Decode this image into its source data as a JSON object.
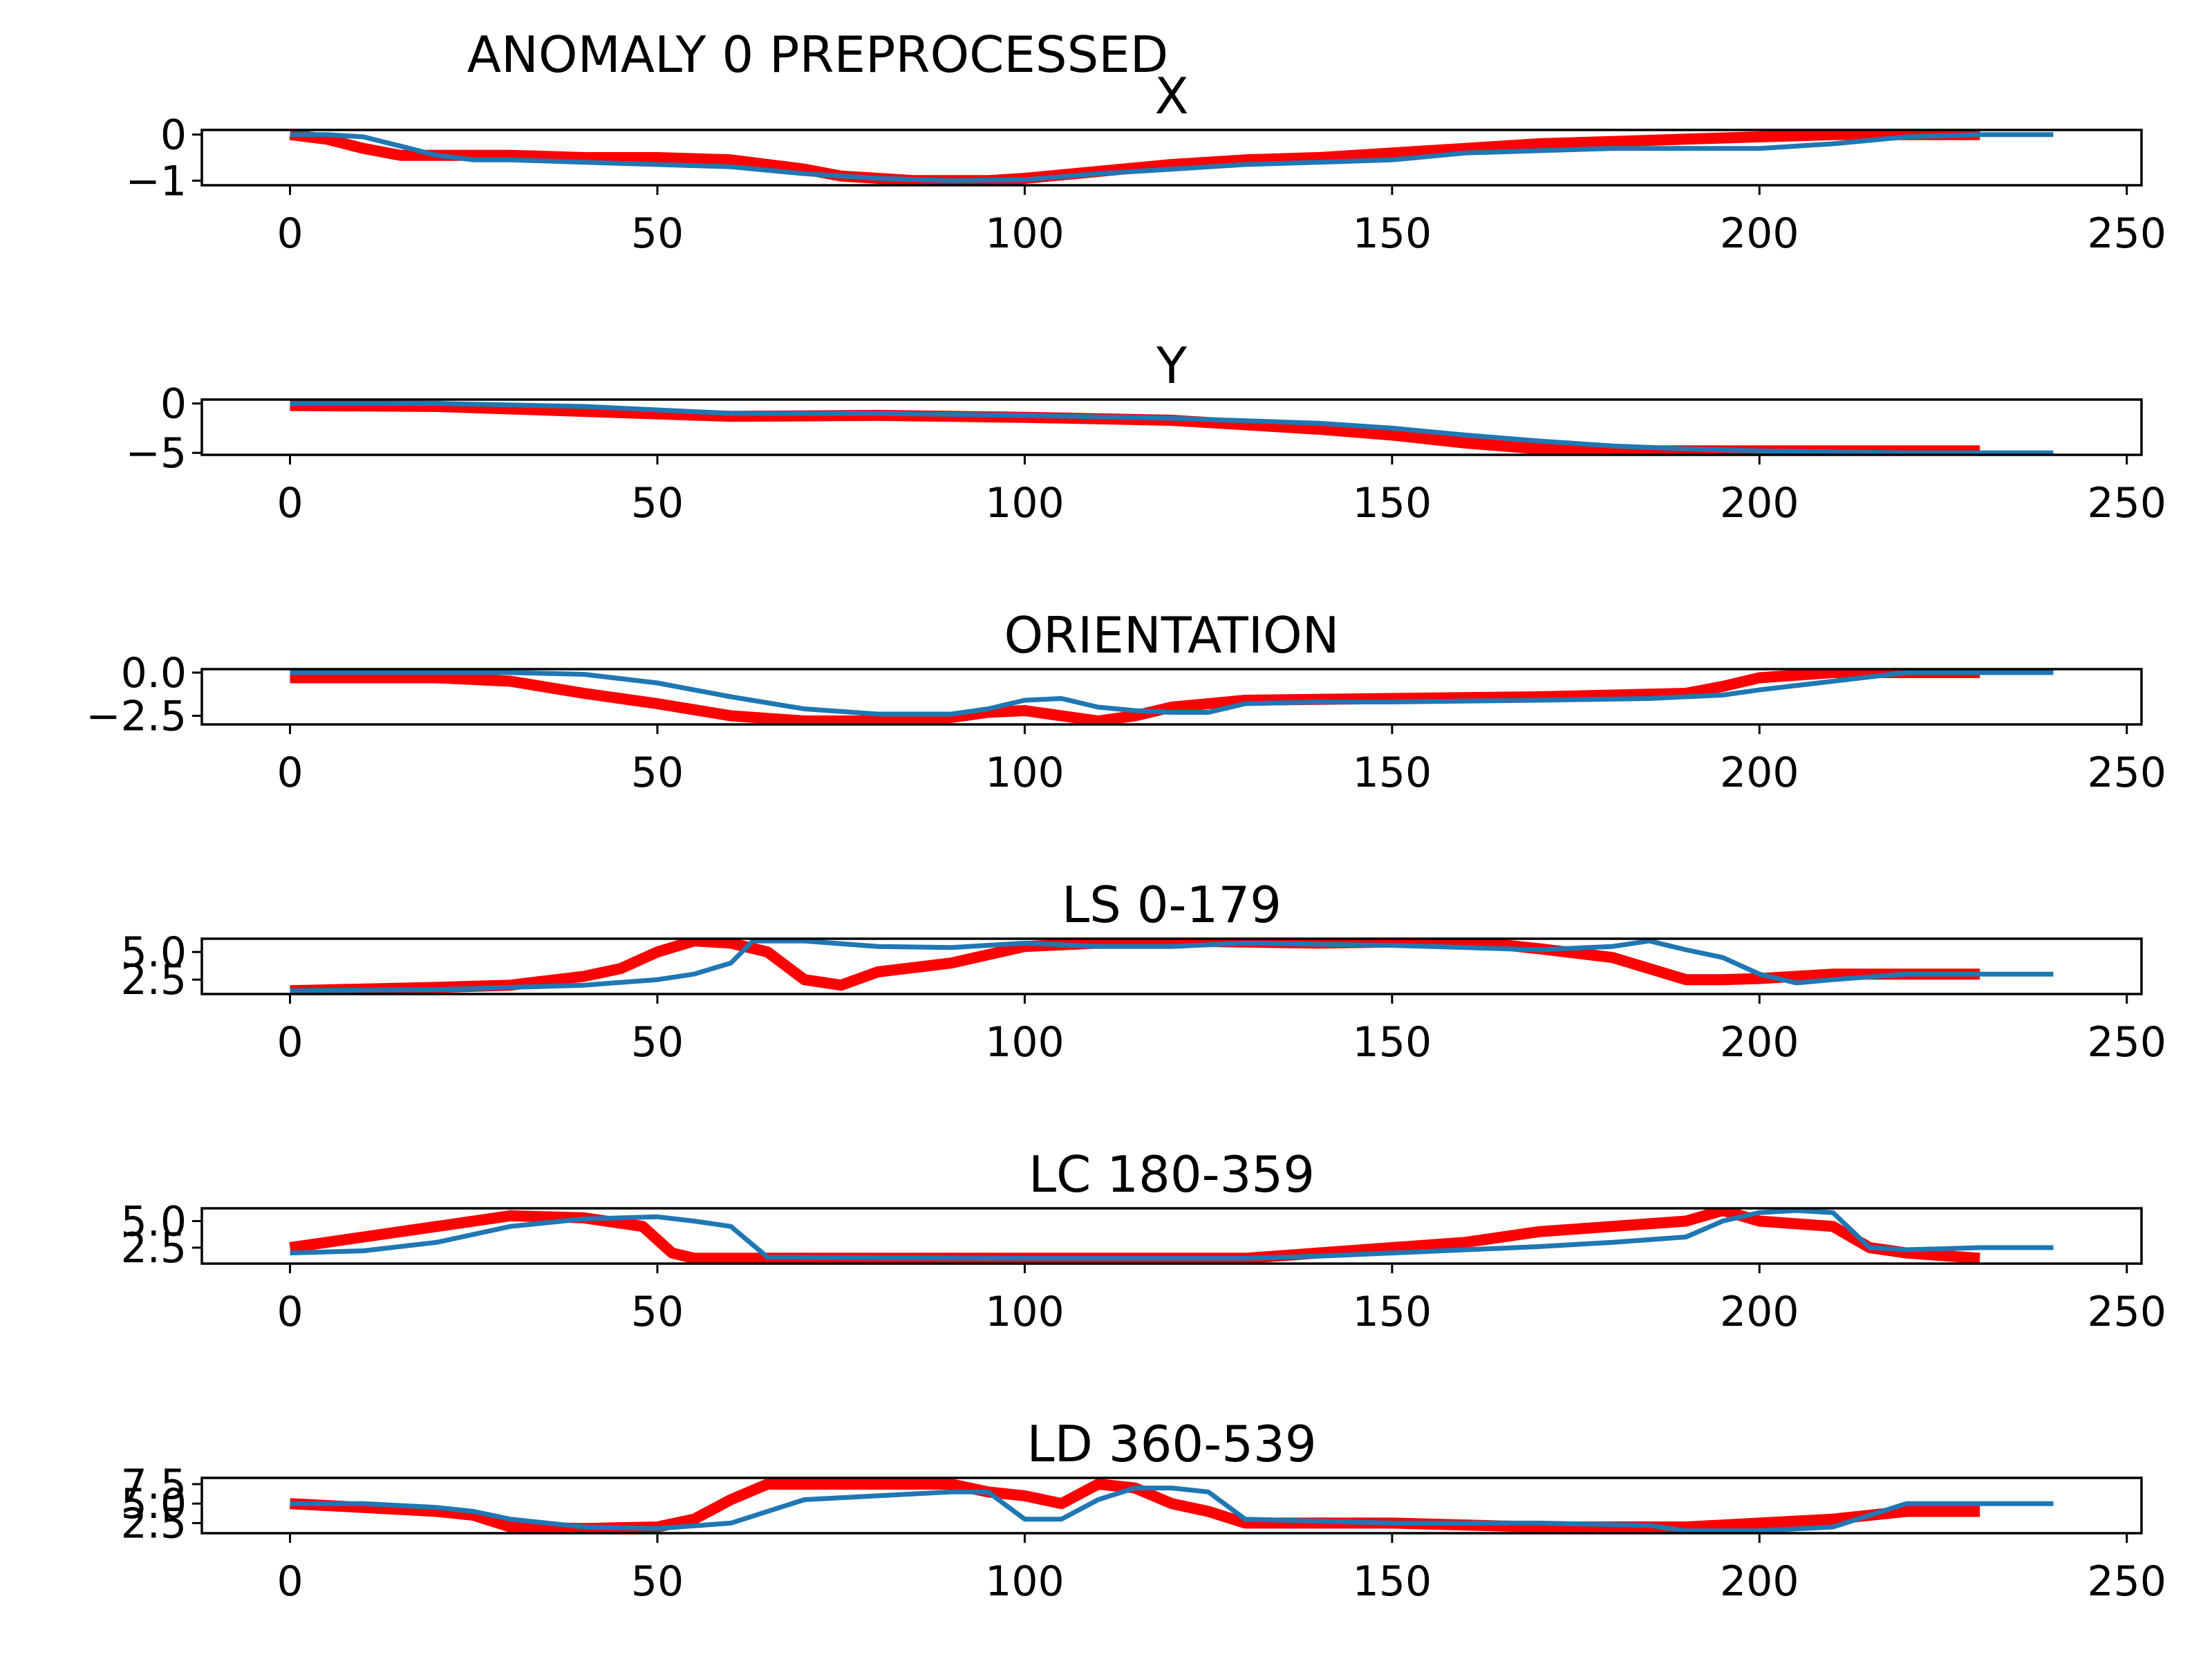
{
  "suptitle": "ANOMALY 0 PREPROCESSED",
  "colors": {
    "reference": "#ff0000",
    "observed": "#1f77b4",
    "axes": "#000000"
  },
  "chart_data": [
    {
      "type": "line",
      "title": "X",
      "xlim": [
        -12,
        252
      ],
      "ylim": [
        -1.1,
        0.1
      ],
      "xticks": [
        0,
        50,
        100,
        150,
        200,
        250
      ],
      "xtick_labels": [
        "0",
        "50",
        "100",
        "150",
        "200",
        "250"
      ],
      "yticks": [
        0,
        -1
      ],
      "ytick_labels": [
        "0",
        "−1"
      ],
      "series": [
        {
          "style": "thick",
          "color": "#ff0000",
          "x": [
            0,
            5,
            10,
            15,
            20,
            30,
            40,
            50,
            60,
            65,
            70,
            75,
            80,
            85,
            90,
            95,
            100,
            110,
            120,
            130,
            140,
            150,
            160,
            170,
            180,
            190,
            200,
            210,
            220,
            230
          ],
          "y": [
            0,
            -0.1,
            -0.3,
            -0.45,
            -0.45,
            -0.45,
            -0.5,
            -0.5,
            -0.55,
            -0.65,
            -0.75,
            -0.9,
            -0.95,
            -1.0,
            -1.0,
            -1.0,
            -0.95,
            -0.8,
            -0.65,
            -0.55,
            -0.5,
            -0.4,
            -0.3,
            -0.2,
            -0.15,
            -0.1,
            -0.05,
            0,
            0,
            0
          ]
        },
        {
          "style": "thin",
          "color": "#1f77b4",
          "x": [
            0,
            5,
            10,
            15,
            20,
            25,
            30,
            40,
            50,
            60,
            70,
            80,
            90,
            100,
            110,
            120,
            130,
            140,
            150,
            160,
            170,
            180,
            190,
            200,
            210,
            220,
            230,
            240
          ],
          "y": [
            0,
            0,
            -0.05,
            -0.25,
            -0.45,
            -0.55,
            -0.55,
            -0.6,
            -0.65,
            -0.7,
            -0.85,
            -0.95,
            -1.0,
            -0.98,
            -0.85,
            -0.75,
            -0.65,
            -0.6,
            -0.55,
            -0.4,
            -0.35,
            -0.3,
            -0.3,
            -0.3,
            -0.2,
            -0.05,
            0,
            0
          ]
        }
      ]
    },
    {
      "type": "line",
      "title": "Y",
      "xlim": [
        -12,
        252
      ],
      "ylim": [
        -5.2,
        0.4
      ],
      "xticks": [
        0,
        50,
        100,
        150,
        200,
        250
      ],
      "xtick_labels": [
        "0",
        "50",
        "100",
        "150",
        "200",
        "250"
      ],
      "yticks": [
        0,
        -5
      ],
      "ytick_labels": [
        "0",
        "−5"
      ],
      "series": [
        {
          "style": "thick",
          "color": "#ff0000",
          "x": [
            0,
            20,
            40,
            60,
            80,
            100,
            120,
            140,
            150,
            160,
            170,
            180,
            190,
            200,
            210,
            220,
            230
          ],
          "y": [
            -0.2,
            -0.3,
            -0.8,
            -1.3,
            -1.2,
            -1.4,
            -1.7,
            -2.6,
            -3.2,
            -4.0,
            -4.6,
            -4.8,
            -4.8,
            -4.8,
            -4.8,
            -4.8,
            -4.8
          ]
        },
        {
          "style": "thin",
          "color": "#1f77b4",
          "x": [
            0,
            20,
            40,
            60,
            80,
            100,
            120,
            140,
            150,
            160,
            170,
            180,
            190,
            200,
            210,
            220,
            230,
            240
          ],
          "y": [
            0,
            0,
            -0.3,
            -1.0,
            -1.0,
            -1.2,
            -1.5,
            -2.0,
            -2.5,
            -3.2,
            -3.8,
            -4.3,
            -4.6,
            -4.8,
            -4.9,
            -5.0,
            -5.0,
            -5.0
          ]
        }
      ]
    },
    {
      "type": "line",
      "title": "ORIENTATION",
      "xlim": [
        -12,
        252
      ],
      "ylim": [
        -3.0,
        0.2
      ],
      "xticks": [
        0,
        50,
        100,
        150,
        200,
        250
      ],
      "xtick_labels": [
        "0",
        "50",
        "100",
        "150",
        "200",
        "250"
      ],
      "yticks": [
        0,
        -2.5
      ],
      "ytick_labels": [
        "0.0",
        "−2.5"
      ],
      "series": [
        {
          "style": "thick",
          "color": "#ff0000",
          "x": [
            0,
            20,
            30,
            40,
            50,
            60,
            70,
            80,
            90,
            95,
            100,
            105,
            110,
            115,
            120,
            130,
            150,
            170,
            180,
            190,
            195,
            200,
            210,
            220,
            230
          ],
          "y": [
            -0.3,
            -0.3,
            -0.5,
            -1.2,
            -1.8,
            -2.5,
            -2.8,
            -2.8,
            -2.6,
            -2.3,
            -2.2,
            -2.5,
            -2.8,
            -2.5,
            -2.0,
            -1.6,
            -1.5,
            -1.4,
            -1.3,
            -1.2,
            -0.8,
            -0.3,
            0,
            0,
            0
          ]
        },
        {
          "style": "thin",
          "color": "#1f77b4",
          "x": [
            0,
            20,
            30,
            40,
            50,
            60,
            70,
            80,
            90,
            95,
            100,
            105,
            110,
            115,
            120,
            125,
            130,
            140,
            150,
            170,
            185,
            195,
            200,
            210,
            220,
            230,
            240
          ],
          "y": [
            0,
            0,
            0,
            -0.1,
            -0.6,
            -1.4,
            -2.1,
            -2.4,
            -2.4,
            -2.1,
            -1.6,
            -1.5,
            -2.0,
            -2.2,
            -2.3,
            -2.3,
            -1.8,
            -1.7,
            -1.7,
            -1.6,
            -1.5,
            -1.3,
            -1.0,
            -0.5,
            0,
            0,
            0
          ]
        }
      ]
    },
    {
      "type": "line",
      "title": "LS 0-179",
      "xlim": [
        -12,
        252
      ],
      "ylim": [
        1.2,
        6.2
      ],
      "xticks": [
        0,
        50,
        100,
        150,
        200,
        250
      ],
      "xtick_labels": [
        "0",
        "50",
        "100",
        "150",
        "200",
        "250"
      ],
      "yticks": [
        2.5,
        5.0
      ],
      "ytick_labels": [
        "2.5",
        "5.0"
      ],
      "series": [
        {
          "style": "thick",
          "color": "#ff0000",
          "x": [
            0,
            20,
            30,
            40,
            45,
            50,
            55,
            60,
            65,
            70,
            75,
            80,
            90,
            100,
            110,
            120,
            140,
            160,
            170,
            180,
            190,
            195,
            200,
            210,
            220,
            230
          ],
          "y": [
            1.5,
            1.8,
            2.0,
            2.8,
            3.5,
            5.0,
            6.0,
            5.8,
            5.0,
            2.5,
            2.0,
            3.2,
            4.0,
            5.5,
            5.8,
            6.0,
            5.8,
            6.0,
            5.3,
            4.5,
            2.5,
            2.5,
            2.6,
            3.0,
            3.0,
            3.0
          ]
        },
        {
          "style": "thin",
          "color": "#1f77b4",
          "x": [
            0,
            20,
            30,
            40,
            50,
            55,
            60,
            63,
            70,
            80,
            90,
            100,
            110,
            120,
            130,
            140,
            150,
            160,
            170,
            180,
            185,
            190,
            195,
            200,
            205,
            210,
            220,
            230,
            240
          ],
          "y": [
            1.5,
            1.6,
            1.8,
            2.0,
            2.5,
            3.0,
            4.0,
            6.0,
            6.0,
            5.5,
            5.4,
            5.8,
            5.5,
            5.5,
            5.8,
            5.7,
            5.6,
            5.4,
            5.2,
            5.5,
            6.0,
            5.2,
            4.5,
            3.0,
            2.2,
            2.5,
            3.0,
            3.0,
            3.0
          ]
        }
      ]
    },
    {
      "type": "line",
      "title": "LC 180-359",
      "xlim": [
        -12,
        252
      ],
      "ylim": [
        1.0,
        6.2
      ],
      "xticks": [
        0,
        50,
        100,
        150,
        200,
        250
      ],
      "xtick_labels": [
        "0",
        "50",
        "100",
        "150",
        "200",
        "250"
      ],
      "yticks": [
        2.5,
        5.0
      ],
      "ytick_labels": [
        "2.5",
        "5.0"
      ],
      "series": [
        {
          "style": "thick",
          "color": "#ff0000",
          "x": [
            0,
            10,
            20,
            30,
            40,
            48,
            52,
            55,
            60,
            100,
            130,
            140,
            150,
            160,
            170,
            180,
            190,
            195,
            200,
            210,
            215,
            220,
            230
          ],
          "y": [
            2.5,
            3.5,
            4.5,
            5.5,
            5.3,
            4.5,
            2.0,
            1.5,
            1.5,
            1.5,
            1.5,
            2.0,
            2.5,
            3.0,
            4.0,
            4.5,
            5.0,
            6.0,
            5.0,
            4.5,
            2.5,
            2.0,
            1.5
          ]
        },
        {
          "style": "thin",
          "color": "#1f77b4",
          "x": [
            0,
            10,
            20,
            30,
            40,
            50,
            55,
            60,
            65,
            100,
            130,
            140,
            150,
            160,
            170,
            180,
            190,
            195,
            200,
            205,
            210,
            215,
            220,
            230,
            240
          ],
          "y": [
            2.0,
            2.2,
            3.0,
            4.5,
            5.2,
            5.4,
            5.0,
            4.5,
            1.6,
            1.5,
            1.5,
            1.7,
            2.0,
            2.3,
            2.6,
            3.0,
            3.5,
            5.0,
            5.8,
            6.0,
            5.8,
            2.5,
            2.3,
            2.5,
            2.5
          ]
        }
      ]
    },
    {
      "type": "line",
      "title": "LD 360-539",
      "xlim": [
        -12,
        252
      ],
      "ylim": [
        1.2,
        8.3
      ],
      "xticks": [
        0,
        50,
        100,
        150,
        200,
        250
      ],
      "xtick_labels": [
        "0",
        "50",
        "100",
        "150",
        "200",
        "250"
      ],
      "yticks": [
        2.5,
        5.0,
        7.5
      ],
      "ytick_labels": [
        "2.5",
        "5.0",
        "7.5"
      ],
      "series": [
        {
          "style": "thick",
          "color": "#ff0000",
          "x": [
            0,
            10,
            20,
            25,
            30,
            40,
            50,
            55,
            60,
            65,
            70,
            80,
            90,
            95,
            100,
            105,
            110,
            115,
            120,
            125,
            130,
            150,
            170,
            190,
            200,
            210,
            220,
            230
          ],
          "y": [
            5.0,
            4.5,
            4.0,
            3.5,
            2.0,
            1.8,
            2.0,
            3.0,
            5.5,
            7.5,
            7.5,
            7.5,
            7.5,
            6.5,
            6.0,
            5.0,
            7.5,
            7.0,
            5.0,
            4.0,
            2.5,
            2.5,
            2.0,
            2.0,
            2.5,
            3.0,
            4.0,
            4.0
          ]
        },
        {
          "style": "thin",
          "color": "#1f77b4",
          "x": [
            0,
            10,
            20,
            25,
            30,
            40,
            50,
            60,
            70,
            80,
            90,
            95,
            100,
            105,
            110,
            115,
            120,
            125,
            130,
            150,
            170,
            185,
            190,
            200,
            210,
            220,
            230,
            240
          ],
          "y": [
            5.0,
            5.0,
            4.5,
            4.0,
            3.0,
            2.0,
            1.8,
            2.5,
            5.5,
            6.0,
            6.5,
            6.5,
            3.0,
            3.0,
            5.5,
            7.0,
            7.0,
            6.5,
            3.0,
            2.5,
            2.5,
            2.2,
            1.5,
            1.5,
            2.0,
            5.0,
            5.0,
            5.0
          ]
        }
      ]
    }
  ]
}
